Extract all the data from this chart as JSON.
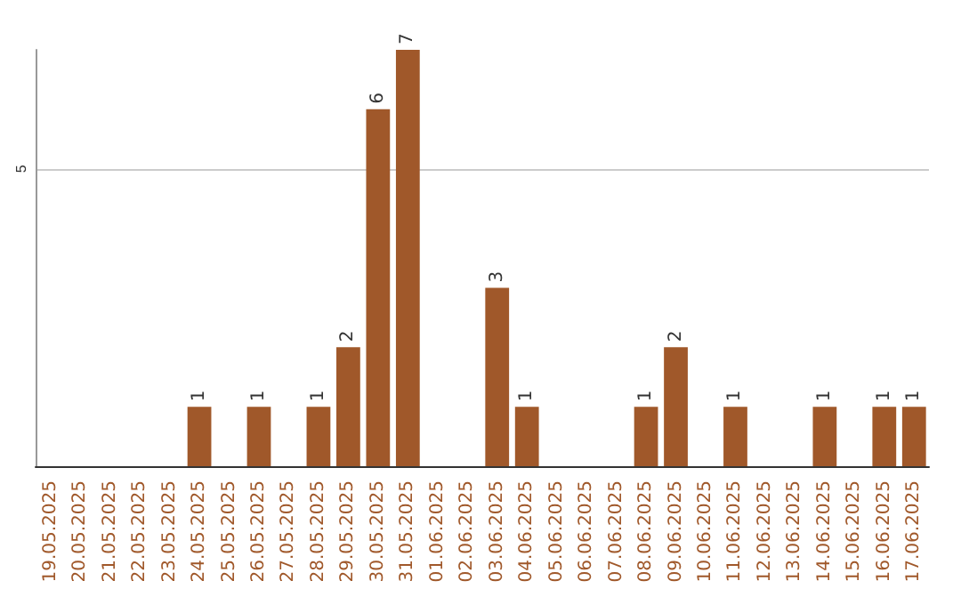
{
  "chart_data": {
    "type": "bar",
    "categories": [
      "19.05.2025",
      "20.05.2025",
      "21.05.2025",
      "22.05.2025",
      "23.05.2025",
      "24.05.2025",
      "25.05.2025",
      "26.05.2025",
      "27.05.2025",
      "28.05.2025",
      "29.05.2025",
      "30.05.2025",
      "31.05.2025",
      "01.06.2025",
      "02.06.2025",
      "03.06.2025",
      "04.06.2025",
      "05.06.2025",
      "06.06.2025",
      "07.06.2025",
      "08.06.2025",
      "09.06.2025",
      "10.06.2025",
      "11.06.2025",
      "12.06.2025",
      "13.06.2025",
      "14.06.2025",
      "15.06.2025",
      "16.06.2025",
      "17.06.2025"
    ],
    "values": [
      0,
      0,
      0,
      0,
      0,
      1,
      0,
      1,
      0,
      1,
      2,
      6,
      7,
      0,
      0,
      3,
      1,
      0,
      0,
      0,
      1,
      2,
      0,
      1,
      0,
      0,
      1,
      0,
      1,
      1
    ],
    "value_labels": [
      null,
      null,
      null,
      null,
      null,
      "1",
      null,
      "1",
      null,
      "1",
      "2",
      "6",
      "7",
      null,
      null,
      "3",
      "1",
      null,
      null,
      null,
      "1",
      "2",
      null,
      "1",
      null,
      null,
      "1",
      null,
      "1",
      "1"
    ],
    "color": "#a0582a",
    "ylim": [
      0,
      7
    ],
    "yticks": [
      {
        "value": 0,
        "label": null
      },
      5
    ],
    "grid": "y"
  }
}
